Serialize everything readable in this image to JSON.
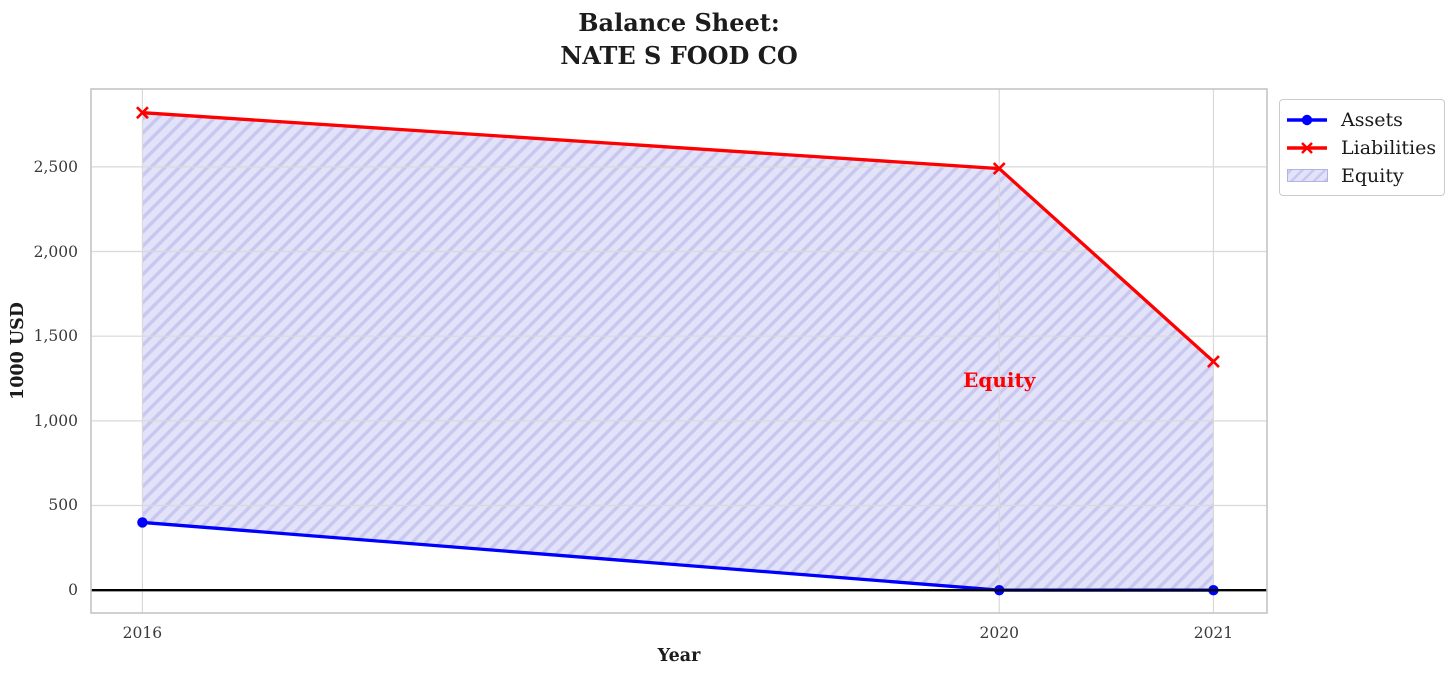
{
  "chart_data": {
    "type": "line",
    "title": "Balance Sheet:\nNATE S FOOD CO",
    "xlabel": "Year",
    "ylabel": "1000 USD",
    "x": [
      2016,
      2020,
      2021
    ],
    "x_tick_labels": [
      "2016",
      "2020",
      "2021"
    ],
    "y_ticks": [
      0,
      500,
      1000,
      1500,
      2000,
      2500
    ],
    "y_tick_labels": [
      "0",
      "500",
      "1,000",
      "1,500",
      "2,000",
      "2,500"
    ],
    "xlim": [
      2015.76,
      2021.25
    ],
    "ylim": [
      -135,
      2960
    ],
    "grid": true,
    "series": [
      {
        "name": "Assets",
        "values": [
          400,
          0,
          0
        ],
        "color": "#0000ff",
        "marker": "circle"
      },
      {
        "name": "Liabilities",
        "values": [
          2820,
          2490,
          1350
        ],
        "color": "#ff0000",
        "marker": "x"
      }
    ],
    "fill_between": {
      "name": "Equity",
      "upper": "Liabilities",
      "lower": "Assets",
      "hatch": "//",
      "fill_color": "#e2e2f9",
      "hatch_color": "#c7c7f0",
      "edge_color": "#b2b2e4"
    },
    "zero_line": {
      "y": 0,
      "color": "#000000"
    },
    "annotation": {
      "text": "Equity",
      "x": 2020,
      "y": 1240,
      "color": "#ff0000"
    },
    "legend_position": "upper right, outside axes"
  }
}
